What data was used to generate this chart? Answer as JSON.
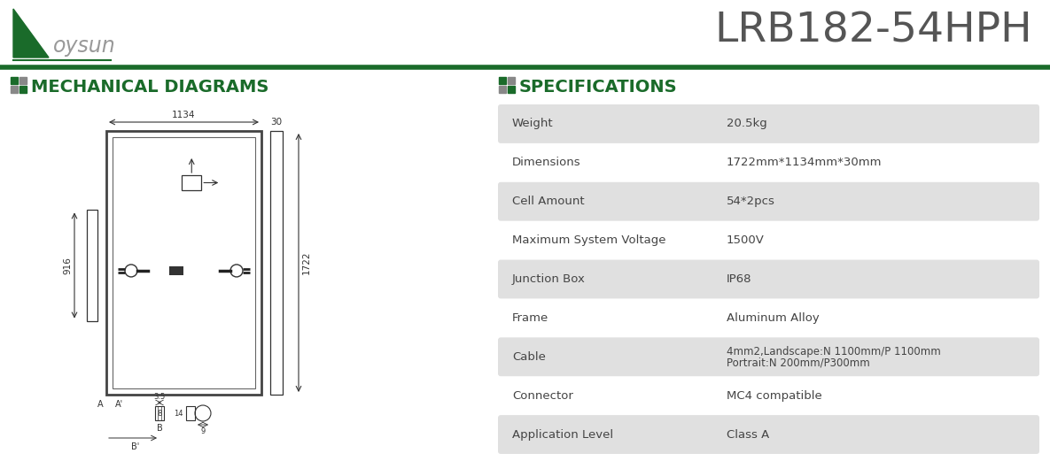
{
  "model": "LRB182-54HPH",
  "brand": "oysun",
  "green_color": "#1a6b2a",
  "gray_text": "#444444",
  "light_gray_bg": "#e0e0e0",
  "specs": [
    {
      "label": "Weight",
      "value": "20.5kg",
      "shaded": true
    },
    {
      "label": "Dimensions",
      "value": "1722mm*1134mm*30mm",
      "shaded": false
    },
    {
      "label": "Cell Amount",
      "value": "54*2pcs",
      "shaded": true
    },
    {
      "label": "Maximum System Voltage",
      "value": "1500V",
      "shaded": false
    },
    {
      "label": "Junction Box",
      "value": "IP68",
      "shaded": true
    },
    {
      "label": "Frame",
      "value": "Aluminum Alloy",
      "shaded": false
    },
    {
      "label": "Cable",
      "value": "4mm2,Landscape:N 1100mm/P 1100mm\nPortrait:N 200mm/P300mm",
      "shaded": true
    },
    {
      "label": "Connector",
      "value": "MC4 compatible",
      "shaded": false
    },
    {
      "label": "Application Level",
      "value": "Class A",
      "shaded": true
    }
  ],
  "mech_dims": {
    "width_label": "1134",
    "height_label": "1722",
    "side_label": "30",
    "side_height": "916",
    "detail_35": "3.5",
    "detail_8": "8",
    "detail_14": "14",
    "detail_9": "9"
  }
}
